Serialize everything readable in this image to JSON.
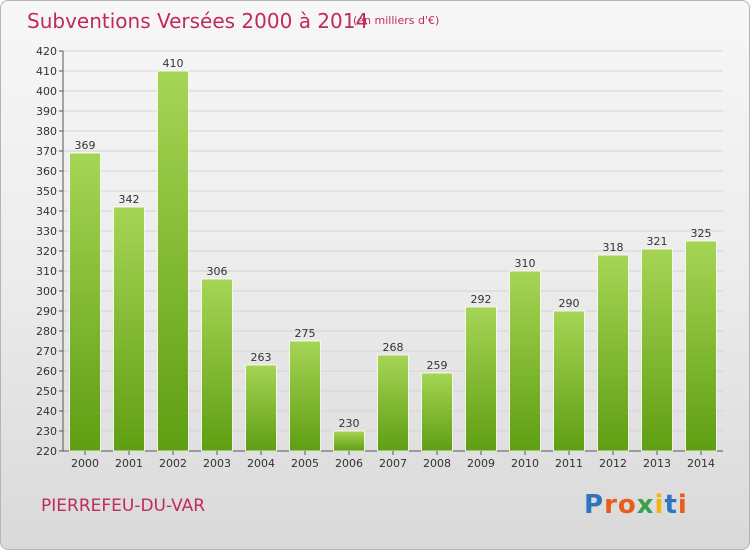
{
  "header": {
    "title": "Subventions Versées 2000 à 2014",
    "subtitle": "(en milliers d'€)"
  },
  "footer": {
    "commune": "PIERREFEU-DU-VAR",
    "logo": "Proxiti"
  },
  "colors": {
    "title": "#c02a5c",
    "bar_light": "#a6d555",
    "bar_dark": "#5f9e13",
    "logo_letters": [
      "#2f74c0",
      "#e85d1a",
      "#e85d1a",
      "#3aa04b",
      "#f2b311",
      "#2f74c0",
      "#e85d1a"
    ]
  },
  "chart_data": {
    "type": "bar",
    "categories": [
      "2000",
      "2001",
      "2002",
      "2003",
      "2004",
      "2005",
      "2006",
      "2007",
      "2008",
      "2009",
      "2010",
      "2011",
      "2012",
      "2013",
      "2014"
    ],
    "values": [
      369,
      342,
      410,
      306,
      263,
      275,
      230,
      268,
      259,
      292,
      310,
      290,
      318,
      321,
      325
    ],
    "ylim": [
      220,
      420
    ],
    "yticks": [
      220,
      230,
      240,
      250,
      260,
      270,
      280,
      290,
      300,
      310,
      320,
      330,
      340,
      350,
      360,
      370,
      380,
      390,
      400,
      410,
      420
    ],
    "grid": true,
    "legend": "none"
  }
}
